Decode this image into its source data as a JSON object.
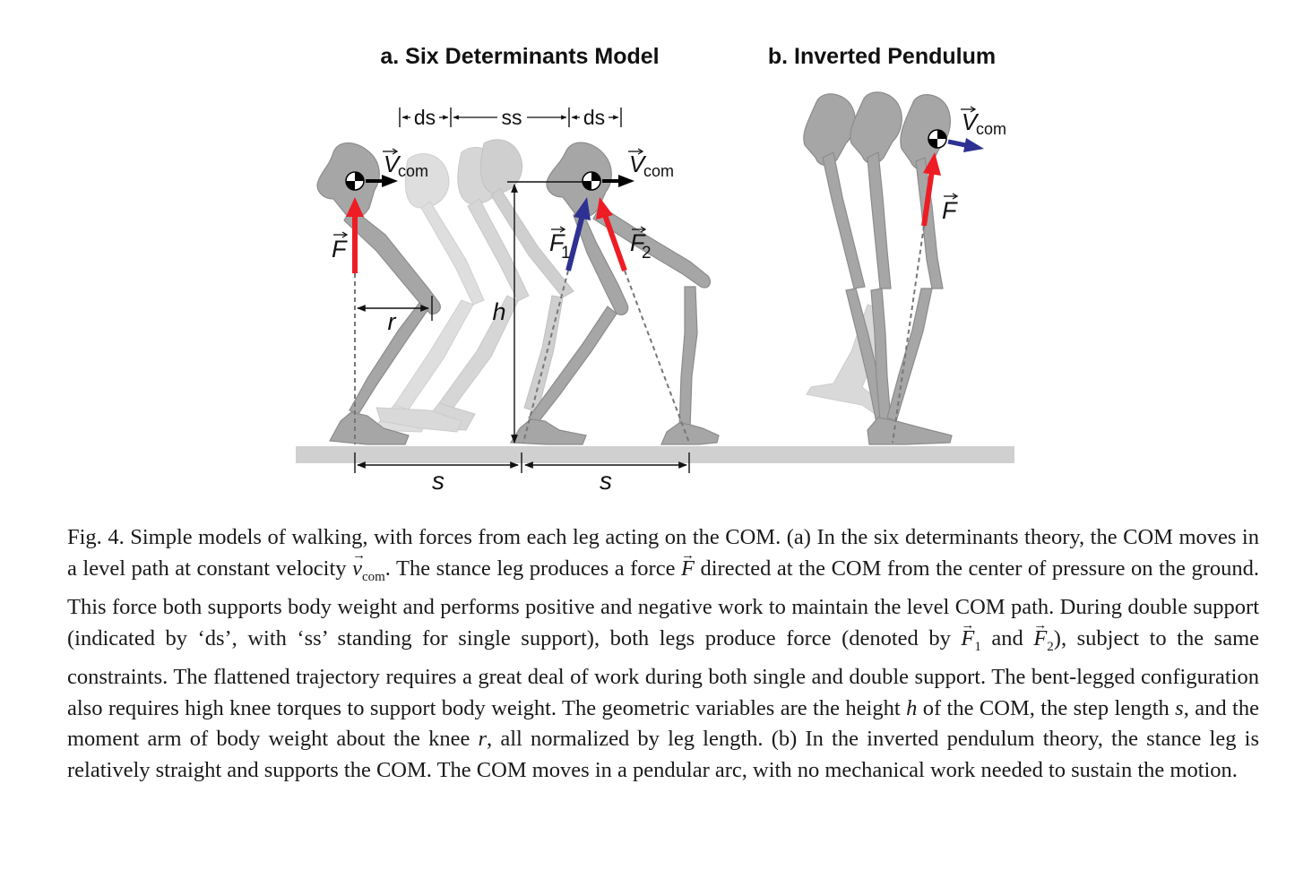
{
  "panel_a": {
    "title": "a. Six Determinants Model",
    "phase_ds_left": "ds",
    "phase_ss": "ss",
    "phase_ds_right": "ds",
    "velocity_label_left": {
      "base": "V",
      "sub": "com"
    },
    "velocity_label_right": {
      "base": "V",
      "sub": "com"
    },
    "force_label": "F",
    "force1_label": {
      "base": "F",
      "sub": "1"
    },
    "force2_label": {
      "base": "F",
      "sub": "2"
    },
    "moment_arm_label": "r",
    "height_label": "h",
    "step_label_left": "s",
    "step_label_right": "s"
  },
  "panel_b": {
    "title": "b. Inverted Pendulum",
    "velocity_label": {
      "base": "V",
      "sub": "com"
    },
    "force_label": "F"
  },
  "colors": {
    "force_red": "#ee1c25",
    "force_blue": "#2e3192",
    "bone": "#a6a6a6",
    "bone_faded": "#d9d9d9",
    "ground": "#d0d0d0"
  },
  "caption": {
    "p1": "Fig. 4.  Simple models of walking, with forces from each leg acting on the COM. (a) In the six determinants theory, the COM moves in a level path at constant velocity ",
    "v_sym": "v",
    "v_sub": "com",
    "p2": ". The stance leg produces a force ",
    "f_sym": "F",
    "p3": " directed at the COM from the center of pressure on the ground. This force both supports body weight and performs positive and negative work to maintain the level COM path. During double support (indicated by ‘ds’, with ‘ss’ standing for single support), both legs produce force (denoted by ",
    "f1_sym": "F",
    "f1_sub": "1",
    "p4": " and ",
    "f2_sym": "F",
    "f2_sub": "2",
    "p5": "), subject to the same constraints. The flattened trajectory requires a great deal of work during both single and double support. The bent-legged configuration also requires high knee torques to support body weight. The geometric variables are the height ",
    "h_sym": "h",
    "p6": " of the COM, the step length ",
    "s_sym": "s",
    "p7": ", and the moment arm of body weight about the knee ",
    "r_sym": "r",
    "p8": ", all normalized by leg length. (b) In the inverted pendulum theory, the stance leg is relatively straight and supports the COM. The COM moves in a pendular arc, with no mechanical work needed to sustain the motion."
  }
}
